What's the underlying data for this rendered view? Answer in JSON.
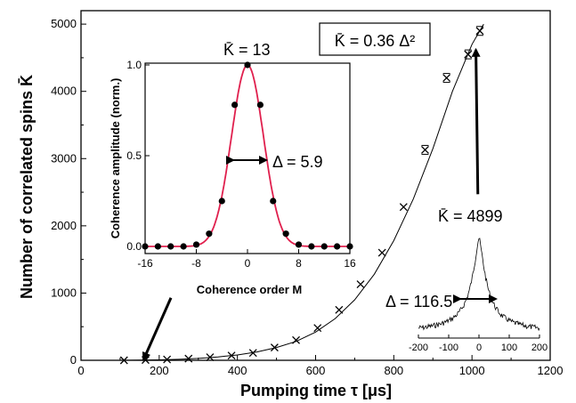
{
  "chart_data": [
    {
      "type": "scatter",
      "xlabel": "Pumping time τ [μs]",
      "ylabel": "Number of correlated spins K̄",
      "xlim": [
        0,
        1200
      ],
      "ylim": [
        0,
        5200
      ],
      "x_ticks": [
        0,
        200,
        400,
        600,
        800,
        1000,
        1200
      ],
      "y_ticks": [
        0,
        1000,
        2000,
        3000,
        4000,
        5000
      ],
      "grid": false,
      "formula_label": "K̄ = 0.36 Δ²",
      "series": [
        {
          "marker": "x",
          "x": [
            110,
            165,
            220,
            275,
            330,
            385,
            440,
            495,
            550,
            605,
            660,
            715,
            770,
            825,
            880,
            935,
            990,
            1020
          ],
          "y": [
            0,
            5,
            12,
            25,
            45,
            70,
            110,
            190,
            300,
            480,
            750,
            1130,
            1600,
            2280,
            3130,
            4200,
            4550,
            4899
          ]
        }
      ],
      "fit_curve": {
        "x": [
          100,
          150,
          200,
          250,
          300,
          350,
          400,
          450,
          500,
          550,
          600,
          650,
          700,
          750,
          800,
          850,
          900,
          950,
          1000,
          1030
        ],
        "y": [
          0,
          2,
          7,
          15,
          28,
          50,
          80,
          125,
          190,
          280,
          420,
          620,
          900,
          1280,
          1780,
          2400,
          3150,
          4000,
          4700,
          5000
        ]
      },
      "arrows": [
        {
          "from": [
            230,
            930
          ],
          "to": [
            160,
            10
          ]
        },
        {
          "from": [
            1015,
            2470
          ],
          "to": [
            1010,
            4620
          ]
        }
      ],
      "annotations": [
        {
          "text": "K̄ = 4899",
          "at": [
            1015,
            2200
          ]
        },
        {
          "text": "Δ = 116.5",
          "at": [
            890,
            940
          ]
        }
      ]
    },
    {
      "type": "scatter",
      "xlabel": "Coherence order M",
      "ylabel": "Coherence amplitude (norm.)",
      "xlim": [
        -16,
        16
      ],
      "ylim": [
        0,
        1.0
      ],
      "x_ticks": [
        -16,
        -8,
        0,
        8,
        16
      ],
      "y_ticks": [
        0.0,
        0.5,
        1.0
      ],
      "y_tick_labels": [
        "0.0",
        "0.5",
        "1.0"
      ],
      "points": {
        "x": [
          -16,
          -14,
          -12,
          -10,
          -8,
          -6,
          -4,
          -2,
          0,
          2,
          4,
          6,
          8,
          10,
          12,
          14,
          16
        ],
        "y": [
          0.0,
          0.0,
          0.0,
          0.0,
          0.01,
          0.07,
          0.25,
          0.78,
          1.0,
          0.78,
          0.25,
          0.07,
          0.01,
          0.0,
          0.0,
          0.0,
          0.0
        ]
      },
      "fit": {
        "type": "gaussian",
        "color": "#e0204e",
        "sigma": 2.5
      },
      "annotations": [
        {
          "text": "K̄ = 13"
        },
        {
          "text": "Δ = 5.9"
        }
      ]
    },
    {
      "type": "line",
      "xlim": [
        -200,
        200
      ],
      "x_ticks": [
        -200,
        -100,
        0,
        100,
        200
      ]
    }
  ]
}
